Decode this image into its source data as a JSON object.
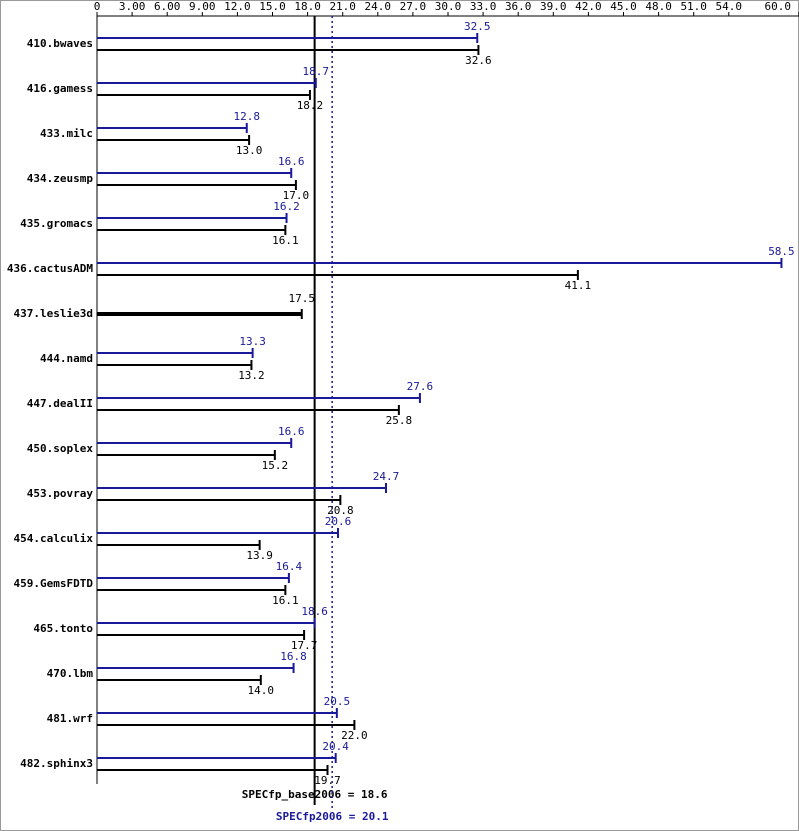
{
  "chart_data": {
    "type": "bar",
    "orientation": "horizontal",
    "categories": [
      "410.bwaves",
      "416.gamess",
      "433.milc",
      "434.zeusmp",
      "435.gromacs",
      "436.cactusADM",
      "437.leslie3d",
      "444.namd",
      "447.dealII",
      "450.soplex",
      "453.povray",
      "454.calculix",
      "459.GemsFDTD",
      "465.tonto",
      "470.lbm",
      "481.wrf",
      "482.sphinx3"
    ],
    "series": [
      {
        "color": "#191999",
        "values": [
          32.5,
          18.7,
          12.8,
          16.6,
          16.2,
          58.5,
          null,
          13.3,
          27.6,
          16.6,
          24.7,
          20.6,
          16.4,
          18.6,
          16.8,
          20.5,
          20.4
        ],
        "value_labels": [
          "32.5",
          "18.7",
          "12.8",
          "16.6",
          "16.2",
          "58.5",
          null,
          "13.3",
          "27.6",
          "16.6",
          "24.7",
          "20.6",
          "16.4",
          "18.6",
          "16.8",
          "20.5",
          "20.4"
        ]
      },
      {
        "color": "#000000",
        "values": [
          32.6,
          18.2,
          13.0,
          17.0,
          16.1,
          41.1,
          17.5,
          13.2,
          25.8,
          15.2,
          20.8,
          13.9,
          16.1,
          17.7,
          14.0,
          22.0,
          19.7
        ],
        "value_labels": [
          "32.6",
          "18.2",
          "13.0",
          "17.0",
          "16.1",
          "41.1",
          "17.5",
          "13.2",
          "25.8",
          "15.2",
          "20.8",
          "13.9",
          "16.1",
          "17.7",
          "14.0",
          "22.0",
          "19.7"
        ]
      }
    ],
    "xlim": [
      0,
      60
    ],
    "xticks": [
      0,
      {
        "value": 3,
        "label": "3.00"
      },
      {
        "value": 6,
        "label": "6.00"
      },
      {
        "value": 9,
        "label": "9.00"
      },
      {
        "value": 12,
        "label": "12.0"
      },
      {
        "value": 15,
        "label": "15.0"
      },
      {
        "value": 18,
        "label": "18.0"
      },
      {
        "value": 21,
        "label": "21.0"
      },
      {
        "value": 24,
        "label": "24.0"
      },
      {
        "value": 27,
        "label": "27.0"
      },
      {
        "value": 30,
        "label": "30.0"
      },
      {
        "value": 33,
        "label": "33.0"
      },
      {
        "value": 36,
        "label": "36.0"
      },
      {
        "value": 39,
        "label": "39.0"
      },
      {
        "value": 42,
        "label": "42.0"
      },
      {
        "value": 45,
        "label": "45.0"
      },
      {
        "value": 48,
        "label": "48.0"
      },
      {
        "value": 51,
        "label": "51.0"
      },
      {
        "value": 54,
        "label": "54.0"
      },
      {
        "value": 60,
        "label": "60.0"
      }
    ],
    "reference_lines": [
      {
        "label": "SPECfp_base2006 =",
        "value": 18.6,
        "color": "#000000",
        "style": "solid"
      },
      {
        "label": "SPECfp2006 =",
        "value": 20.1,
        "color": "#191999",
        "style": "dotted"
      }
    ]
  }
}
